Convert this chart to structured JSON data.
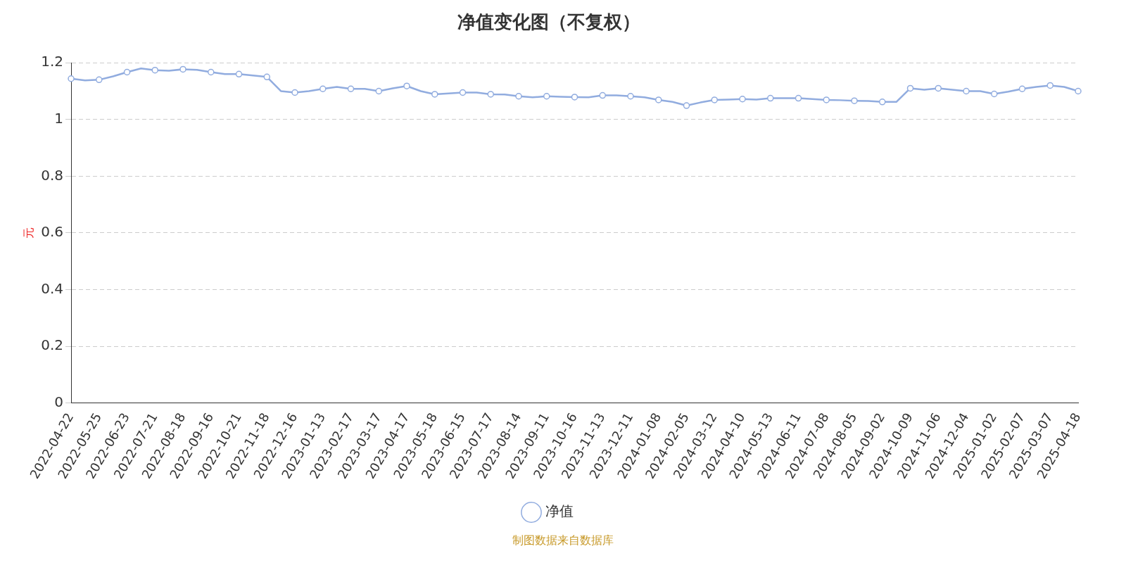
{
  "chart_data": {
    "type": "line",
    "title": "净值变化图（不复权）",
    "ylabel": "元",
    "categories": [
      "2022-04-22",
      null,
      "2022-05-25",
      null,
      "2022-06-23",
      null,
      "2022-07-21",
      null,
      "2022-08-18",
      null,
      "2022-09-16",
      null,
      "2022-10-21",
      null,
      "2022-11-18",
      null,
      "2022-12-16",
      null,
      "2023-01-13",
      null,
      "2023-02-17",
      null,
      "2023-03-17",
      null,
      "2023-04-17",
      null,
      "2023-05-18",
      null,
      "2023-06-15",
      null,
      "2023-07-17",
      null,
      "2023-08-14",
      null,
      "2023-09-11",
      null,
      "2023-10-16",
      null,
      "2023-11-13",
      null,
      "2023-12-11",
      null,
      "2024-01-08",
      null,
      "2024-02-05",
      null,
      "2024-03-12",
      null,
      "2024-04-10",
      null,
      "2024-05-13",
      null,
      "2024-06-11",
      null,
      "2024-07-08",
      null,
      "2024-08-05",
      null,
      "2024-09-02",
      null,
      "2024-10-09",
      null,
      "2024-11-06",
      null,
      "2024-12-04",
      null,
      "2025-01-02",
      null,
      "2025-02-07",
      null,
      "2025-03-07",
      null,
      "2025-04-18"
    ],
    "series": [
      {
        "name": "净值",
        "color": "#91acdf",
        "values": [
          1.144,
          1.138,
          1.14,
          1.152,
          1.167,
          1.18,
          1.174,
          1.172,
          1.177,
          1.175,
          1.167,
          1.16,
          1.16,
          1.155,
          1.15,
          1.1,
          1.095,
          1.1,
          1.108,
          1.115,
          1.108,
          1.108,
          1.1,
          1.11,
          1.118,
          1.1,
          1.089,
          1.092,
          1.095,
          1.095,
          1.089,
          1.088,
          1.082,
          1.078,
          1.082,
          1.08,
          1.079,
          1.078,
          1.085,
          1.085,
          1.082,
          1.078,
          1.069,
          1.062,
          1.049,
          1.06,
          1.069,
          1.07,
          1.072,
          1.07,
          1.075,
          1.075,
          1.075,
          1.072,
          1.069,
          1.068,
          1.066,
          1.065,
          1.062,
          1.062,
          1.11,
          1.105,
          1.11,
          1.105,
          1.1,
          1.1,
          1.09,
          1.098,
          1.108,
          1.115,
          1.12,
          1.115,
          1.1
        ]
      }
    ],
    "ylim": [
      0,
      1.2
    ],
    "yticks": [
      0,
      0.2,
      0.4,
      0.6,
      0.8,
      1,
      1.2
    ],
    "grid": "y",
    "legend": "bottom",
    "marker": "circle",
    "annotations": [
      "制图数据来自数据库"
    ]
  }
}
